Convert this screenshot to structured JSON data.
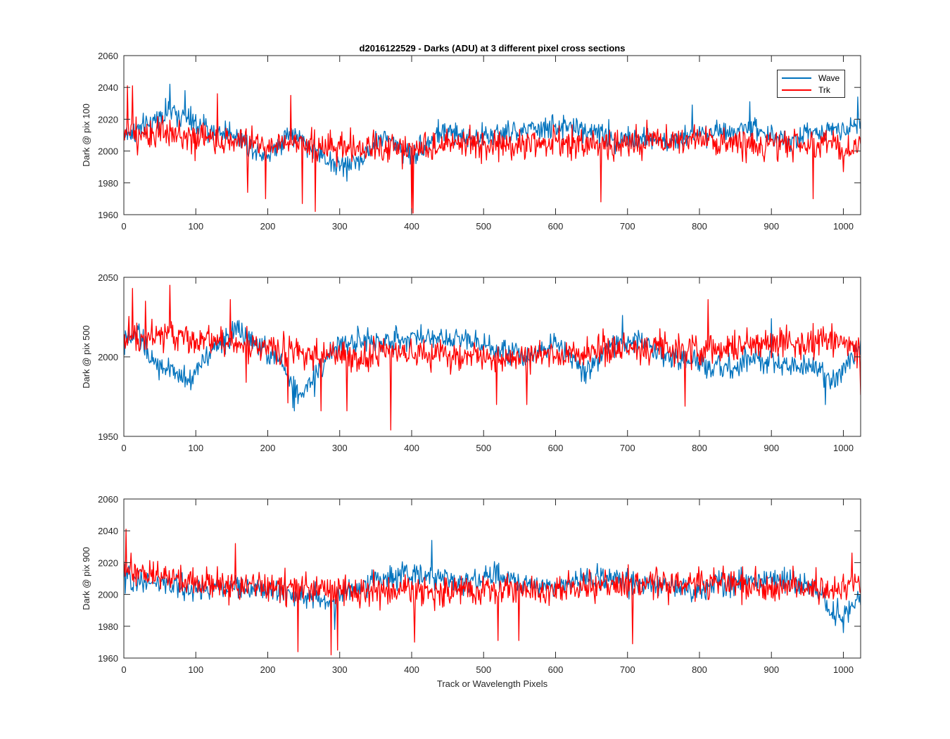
{
  "chart_data": [
    {
      "type": "line",
      "title": "d2016122529 - Darks (ADU) at 3 different pixel cross sections",
      "xlabel": "",
      "ylabel": "Dark @ pix 100",
      "xlim": [
        0,
        1024
      ],
      "ylim": [
        1960,
        2060
      ],
      "xticks": [
        0,
        100,
        200,
        300,
        400,
        500,
        600,
        700,
        800,
        900,
        1000
      ],
      "yticks": [
        1960,
        1980,
        2000,
        2020,
        2040,
        2060
      ],
      "grid": false,
      "legend": "top-right",
      "series": [
        {
          "name": "Wave",
          "color": "#0072bd",
          "base": 2007,
          "noise": 7,
          "knots": [
            [
              0,
              2010
            ],
            [
              30,
              2015
            ],
            [
              60,
              2025
            ],
            [
              80,
              2022
            ],
            [
              120,
              2012
            ],
            [
              150,
              2012
            ],
            [
              170,
              2005
            ],
            [
              200,
              1997
            ],
            [
              230,
              2012
            ],
            [
              260,
              2002
            ],
            [
              300,
              1990
            ],
            [
              330,
              1995
            ],
            [
              360,
              2010
            ],
            [
              400,
              1997
            ],
            [
              440,
              2012
            ],
            [
              480,
              2009
            ],
            [
              520,
              2010
            ],
            [
              560,
              2013
            ],
            [
              600,
              2015
            ],
            [
              640,
              2014
            ],
            [
              680,
              2008
            ],
            [
              720,
              2008
            ],
            [
              760,
              2005
            ],
            [
              800,
              2012
            ],
            [
              840,
              2013
            ],
            [
              880,
              2015
            ],
            [
              920,
              2005
            ],
            [
              960,
              2012
            ],
            [
              1000,
              2015
            ],
            [
              1024,
              2018
            ]
          ],
          "spikes": [
            [
              64,
              2042
            ],
            [
              85,
              2038
            ],
            [
              310,
              1981
            ],
            [
              790,
              2029
            ],
            [
              870,
              2031
            ],
            [
              1020,
              2034
            ]
          ]
        },
        {
          "name": "Trk",
          "color": "#ff0000",
          "base": 2005,
          "noise": 9,
          "knots": [
            [
              0,
              2012
            ],
            [
              60,
              2010
            ],
            [
              120,
              2008
            ],
            [
              200,
              2004
            ],
            [
              300,
              2002
            ],
            [
              400,
              2002
            ],
            [
              500,
              2005
            ],
            [
              600,
              2004
            ],
            [
              700,
              2005
            ],
            [
              800,
              2006
            ],
            [
              900,
              2004
            ],
            [
              1024,
              2003
            ]
          ],
          "spikes": [
            [
              5,
              2041
            ],
            [
              12,
              2041
            ],
            [
              130,
              2036
            ],
            [
              172,
              1974
            ],
            [
              197,
              1970
            ],
            [
              232,
              2035
            ],
            [
              248,
              1967
            ],
            [
              266,
              1962
            ],
            [
              400,
              1961
            ],
            [
              402,
              1961
            ],
            [
              663,
              1968
            ],
            [
              958,
              1970
            ],
            [
              1000,
              1987
            ]
          ]
        }
      ]
    },
    {
      "type": "line",
      "title": "",
      "xlabel": "",
      "ylabel": "Dark @ pix 500",
      "xlim": [
        0,
        1024
      ],
      "ylim": [
        1950,
        2050
      ],
      "xticks": [
        0,
        100,
        200,
        300,
        400,
        500,
        600,
        700,
        800,
        900,
        1000
      ],
      "yticks": [
        1950,
        2000,
        2050
      ],
      "grid": false,
      "series": [
        {
          "name": "Wave",
          "color": "#0072bd",
          "base": 2002,
          "noise": 7,
          "knots": [
            [
              0,
              2008
            ],
            [
              20,
              2015
            ],
            [
              40,
              1996
            ],
            [
              70,
              1990
            ],
            [
              95,
              1985
            ],
            [
              110,
              2000
            ],
            [
              140,
              2010
            ],
            [
              160,
              2018
            ],
            [
              180,
              2008
            ],
            [
              200,
              2003
            ],
            [
              220,
              1995
            ],
            [
              245,
              1975
            ],
            [
              260,
              1985
            ],
            [
              290,
              2005
            ],
            [
              320,
              2010
            ],
            [
              360,
              2009
            ],
            [
              400,
              2013
            ],
            [
              440,
              2012
            ],
            [
              480,
              2012
            ],
            [
              520,
              2005
            ],
            [
              560,
              2000
            ],
            [
              600,
              2010
            ],
            [
              640,
              1990
            ],
            [
              680,
              2008
            ],
            [
              720,
              2010
            ],
            [
              760,
              2000
            ],
            [
              800,
              1995
            ],
            [
              840,
              1992
            ],
            [
              880,
              1998
            ],
            [
              920,
              1995
            ],
            [
              960,
              1993
            ],
            [
              990,
              1985
            ],
            [
              1024,
              2005
            ]
          ],
          "spikes": [
            [
              235,
              1968
            ],
            [
              237,
              1966
            ],
            [
              265,
              1975
            ],
            [
              693,
              2026
            ],
            [
              900,
              2024
            ],
            [
              975,
              1970
            ]
          ]
        },
        {
          "name": "Trk",
          "color": "#ff0000",
          "base": 2008,
          "noise": 9,
          "knots": [
            [
              0,
              2012
            ],
            [
              60,
              2014
            ],
            [
              120,
              2010
            ],
            [
              160,
              2008
            ],
            [
              200,
              2006
            ],
            [
              260,
              2002
            ],
            [
              300,
              2000
            ],
            [
              400,
              2002
            ],
            [
              500,
              2000
            ],
            [
              600,
              2001
            ],
            [
              700,
              2006
            ],
            [
              800,
              2004
            ],
            [
              900,
              2008
            ],
            [
              1000,
              2010
            ],
            [
              1024,
              2004
            ]
          ],
          "spikes": [
            [
              12,
              2043
            ],
            [
              30,
              2035
            ],
            [
              64,
              2045
            ],
            [
              148,
              2036
            ],
            [
              170,
              1984
            ],
            [
              228,
              1971
            ],
            [
              274,
              1966
            ],
            [
              310,
              1966
            ],
            [
              371,
              1954
            ],
            [
              518,
              1970
            ],
            [
              560,
              1970
            ],
            [
              780,
              1969
            ],
            [
              812,
              2036
            ],
            [
              1024,
              1976
            ]
          ]
        }
      ]
    },
    {
      "type": "line",
      "title": "",
      "xlabel": "Track or Wavelength Pixels",
      "ylabel": "Dark @ pix 900",
      "xlim": [
        0,
        1024
      ],
      "ylim": [
        1960,
        2060
      ],
      "xticks": [
        0,
        100,
        200,
        300,
        400,
        500,
        600,
        700,
        800,
        900,
        1000
      ],
      "yticks": [
        1960,
        1980,
        2000,
        2020,
        2040,
        2060
      ],
      "grid": false,
      "series": [
        {
          "name": "Wave",
          "color": "#0072bd",
          "base": 2005,
          "noise": 7,
          "knots": [
            [
              0,
              2010
            ],
            [
              40,
              2008
            ],
            [
              80,
              2004
            ],
            [
              120,
              2003
            ],
            [
              160,
              2005
            ],
            [
              200,
              2002
            ],
            [
              240,
              2000
            ],
            [
              290,
              1995
            ],
            [
              320,
              2005
            ],
            [
              360,
              2010
            ],
            [
              400,
              2012
            ],
            [
              440,
              2010
            ],
            [
              480,
              2008
            ],
            [
              520,
              2012
            ],
            [
              560,
              2006
            ],
            [
              600,
              2005
            ],
            [
              640,
              2010
            ],
            [
              680,
              2010
            ],
            [
              720,
              2008
            ],
            [
              760,
              2005
            ],
            [
              800,
              2002
            ],
            [
              840,
              2008
            ],
            [
              880,
              2010
            ],
            [
              920,
              2008
            ],
            [
              960,
              2003
            ],
            [
              990,
              1985
            ],
            [
              1024,
              1995
            ]
          ],
          "spikes": [
            [
              293,
              1978
            ],
            [
              428,
              2034
            ],
            [
              1000,
              1976
            ]
          ]
        },
        {
          "name": "Trk",
          "color": "#ff0000",
          "base": 2006,
          "noise": 9,
          "knots": [
            [
              0,
              2013
            ],
            [
              40,
              2012
            ],
            [
              100,
              2008
            ],
            [
              200,
              2004
            ],
            [
              300,
              2002
            ],
            [
              400,
              2002
            ],
            [
              500,
              2002
            ],
            [
              600,
              2004
            ],
            [
              700,
              2006
            ],
            [
              800,
              2008
            ],
            [
              900,
              2004
            ],
            [
              1000,
              2003
            ],
            [
              1024,
              2010
            ]
          ],
          "spikes": [
            [
              3,
              2041
            ],
            [
              10,
              2026
            ],
            [
              155,
              2032
            ],
            [
              242,
              1964
            ],
            [
              288,
              1962
            ],
            [
              297,
              1965
            ],
            [
              404,
              1970
            ],
            [
              520,
              1971
            ],
            [
              549,
              1971
            ],
            [
              707,
              1969
            ],
            [
              1012,
              2026
            ]
          ]
        }
      ]
    }
  ],
  "legend_labels": [
    "Wave",
    "Trk"
  ]
}
